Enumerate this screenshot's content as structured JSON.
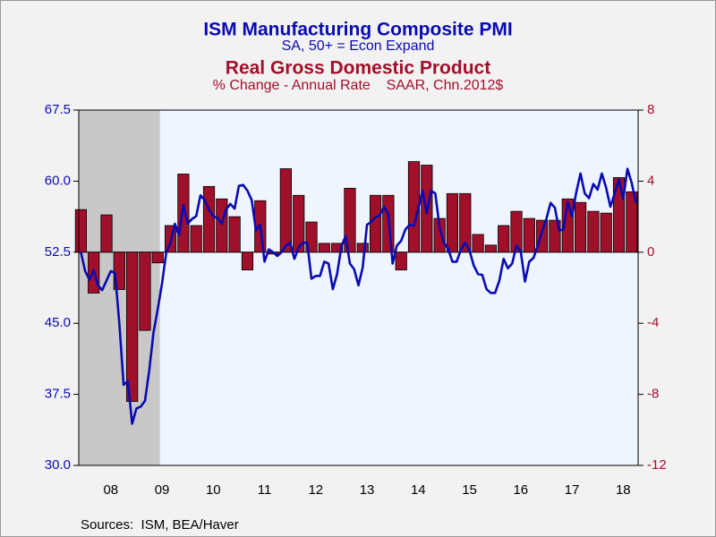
{
  "chart_data": {
    "type": "line",
    "title": "ISM Manufacturing Composite PMI",
    "subtitle": "SA, 50+ = Econ Expand",
    "title2": "Real Gross Domestic Product",
    "subtitle2": "% Change - Annual Rate    SAAR, Chn.2012$",
    "source": "Sources:  ISM, BEA/Haver",
    "categories": [
      null,
      null,
      null,
      null,
      null,
      null,
      null,
      "08",
      null,
      null,
      null,
      null,
      null,
      null,
      null,
      null,
      null,
      null,
      null,
      "09",
      null,
      null,
      null,
      null,
      null,
      null,
      null,
      null,
      null,
      null,
      null,
      "10",
      null,
      null,
      null,
      null,
      null,
      null,
      null,
      null,
      null,
      null,
      null,
      "11",
      null,
      null,
      null,
      null,
      null,
      null,
      null,
      null,
      null,
      null,
      null,
      "12",
      null,
      null,
      null,
      null,
      null,
      null,
      null,
      null,
      null,
      null,
      null,
      "13",
      null,
      null,
      null,
      null,
      null,
      null,
      null,
      null,
      null,
      null,
      null,
      "14",
      null,
      null,
      null,
      null,
      null,
      null,
      null,
      null,
      null,
      null,
      null,
      "15",
      null,
      null,
      null,
      null,
      null,
      null,
      null,
      null,
      null,
      null,
      null,
      "16",
      null,
      null,
      null,
      null,
      null,
      null,
      null,
      null,
      null,
      null,
      null,
      "17",
      null,
      null,
      null,
      null,
      null,
      null,
      null,
      null,
      null,
      null,
      null,
      "18",
      null,
      null,
      null
    ],
    "shade": [
      0,
      18
    ],
    "ylim": [
      30,
      67.5
    ],
    "yticks": [
      {
        "value": 30,
        "label": "30.0"
      },
      37.5,
      {
        "value": 45,
        "label": "45.0"
      },
      52.5,
      {
        "value": 60,
        "label": "60.0"
      },
      67.5
    ],
    "y2lim": [
      -12,
      8
    ],
    "y2ticks": [
      -12,
      -8,
      -4,
      0,
      4,
      8
    ],
    "series": [
      {
        "name": "Real Gross Domestic Product",
        "type": "bar",
        "axis": "y2",
        "color": "#a0102a",
        "values": [
          2.4,
          null,
          null,
          -2.3,
          null,
          null,
          2.1,
          null,
          null,
          -2.1,
          null,
          null,
          -8.4,
          null,
          null,
          -4.4,
          null,
          null,
          -0.6,
          null,
          null,
          1.5,
          null,
          null,
          4.4,
          null,
          null,
          1.5,
          null,
          null,
          3.7,
          null,
          null,
          3.0,
          null,
          null,
          2.0,
          null,
          null,
          -1.0,
          null,
          null,
          2.9,
          null,
          null,
          -0.1,
          null,
          null,
          4.7,
          null,
          null,
          3.2,
          null,
          null,
          1.7,
          null,
          null,
          0.5,
          null,
          null,
          0.5,
          null,
          null,
          3.6,
          null,
          null,
          0.5,
          null,
          null,
          3.2,
          null,
          null,
          3.2,
          null,
          null,
          -1.0,
          null,
          null,
          5.1,
          null,
          null,
          4.9,
          null,
          null,
          1.9,
          null,
          null,
          3.3,
          null,
          null,
          3.3,
          null,
          null,
          1.0,
          null,
          null,
          0.4,
          null,
          null,
          1.5,
          null,
          null,
          2.3,
          null,
          null,
          1.9,
          null,
          null,
          1.8,
          null,
          null,
          1.8,
          null,
          null,
          3.0,
          null,
          null,
          2.8,
          null,
          null,
          2.3,
          null,
          null,
          2.2,
          null,
          null,
          4.2,
          null,
          null,
          3.4,
          null
        ]
      },
      {
        "name": "ISM Manufacturing Composite PMI",
        "type": "line",
        "axis": "y",
        "color": "#0a0ab4",
        "values": [
          52.5,
          50.5,
          49.6,
          50.6,
          49.0,
          48.5,
          49.5,
          50.5,
          50.3,
          45.0,
          38.5,
          38.9,
          34.4,
          36.0,
          36.2,
          36.8,
          40.0,
          44.0,
          46.5,
          49.2,
          52.5,
          53.5,
          55.5,
          54.3,
          57.5,
          55.5,
          56.0,
          56.3,
          58.5,
          58.0,
          57.0,
          56.3,
          56.1,
          55.5,
          57.0,
          57.6,
          57.1,
          59.5,
          59.6,
          59.0,
          58.0,
          54.8,
          55.4,
          51.5,
          52.8,
          52.5,
          52.1,
          52.5,
          53.2,
          53.5,
          51.8,
          53.0,
          53.5,
          53.5,
          49.7,
          50.0,
          50.0,
          51.5,
          51.3,
          48.6,
          50.2,
          53.1,
          54.2,
          51.3,
          50.7,
          49.0,
          50.9,
          55.4,
          55.7,
          56.2,
          56.4,
          57.3,
          56.5,
          51.3,
          53.2,
          53.7,
          54.9,
          55.4,
          55.3,
          57.1,
          59.0,
          56.6,
          59.0,
          58.7,
          55.1,
          53.5,
          52.9,
          51.5,
          51.5,
          52.8,
          53.5,
          52.7,
          51.1,
          50.2,
          50.1,
          48.6,
          48.2,
          48.2,
          49.5,
          51.8,
          50.8,
          51.3,
          53.2,
          52.6,
          49.4,
          51.5,
          51.9,
          53.2,
          54.7,
          56.0,
          57.7,
          57.2,
          54.8,
          54.9,
          57.8,
          56.3,
          58.8,
          60.8,
          58.7,
          58.2,
          59.7,
          59.1,
          60.8,
          59.3,
          57.3,
          58.7,
          60.2,
          58.1,
          61.3,
          59.8,
          57.7
        ]
      }
    ]
  }
}
